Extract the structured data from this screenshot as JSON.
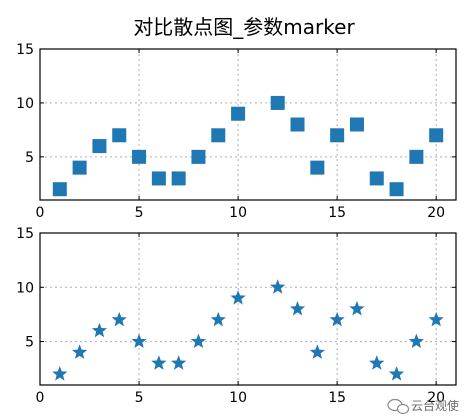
{
  "title": "对比散点图_参数marker",
  "colors": {
    "marker": "#1f77b4",
    "grid": "#b0b0b0"
  },
  "watermark": {
    "icon": "wechat-icon",
    "text": "云台观使"
  },
  "chart_data": [
    {
      "type": "scatter",
      "marker": "square",
      "x": [
        1,
        2,
        3,
        4,
        5,
        6,
        7,
        8,
        9,
        10,
        12,
        13,
        14,
        15,
        16,
        17,
        18,
        19,
        20
      ],
      "y": [
        2,
        4,
        6,
        7,
        5,
        3,
        3,
        5,
        7,
        9,
        10,
        8,
        4,
        7,
        8,
        3,
        2,
        5,
        7
      ],
      "xlim": [
        0,
        21
      ],
      "ylim": [
        1,
        15
      ],
      "xticks": [
        0,
        5,
        10,
        15,
        20
      ],
      "yticks": [
        5,
        10,
        15
      ],
      "grid": true
    },
    {
      "type": "scatter",
      "marker": "star",
      "x": [
        1,
        2,
        3,
        4,
        5,
        6,
        7,
        8,
        9,
        10,
        12,
        13,
        14,
        15,
        16,
        17,
        18,
        19,
        20
      ],
      "y": [
        2,
        4,
        6,
        7,
        5,
        3,
        3,
        5,
        7,
        9,
        10,
        8,
        4,
        7,
        8,
        3,
        2,
        5,
        7
      ],
      "xlim": [
        0,
        21
      ],
      "ylim": [
        1,
        15
      ],
      "xticks": [
        0,
        5,
        10,
        15,
        20
      ],
      "yticks": [
        5,
        10,
        15
      ],
      "grid": true
    }
  ]
}
